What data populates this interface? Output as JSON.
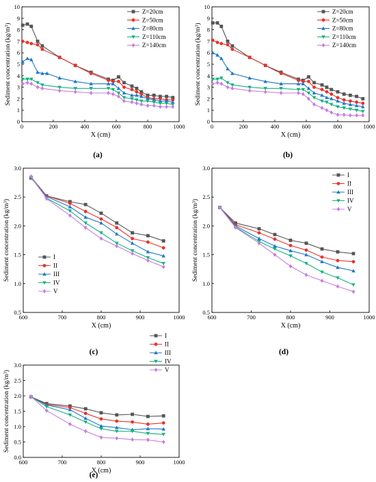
{
  "chart_data": [
    {
      "panel_label": "(a)",
      "type": "line",
      "xlabel": "X (cm)",
      "ylabel": "Sediment concentration (kg/m³)",
      "xlim": [
        0,
        1000
      ],
      "ylim": [
        0,
        10
      ],
      "xticks": [
        0,
        200,
        400,
        600,
        800,
        1000
      ],
      "yticks": [
        0,
        1,
        2,
        3,
        4,
        5,
        6,
        7,
        8,
        9,
        10
      ],
      "legend_position": "top-right",
      "series": [
        {
          "name": "Z=20cm",
          "color": "#555555",
          "marker": "square",
          "x": [
            5,
            35,
            60,
            100,
            130,
            240,
            340,
            440,
            550,
            580,
            615,
            650,
            700,
            730,
            760,
            800,
            840,
            880,
            920,
            960
          ],
          "y": [
            8.4,
            8.5,
            8.3,
            7.0,
            6.6,
            5.6,
            4.9,
            4.3,
            3.7,
            3.6,
            3.9,
            3.4,
            3.1,
            2.9,
            2.6,
            2.3,
            2.3,
            2.2,
            2.2,
            2.1
          ]
        },
        {
          "name": "Z=50cm",
          "color": "#e8322a",
          "marker": "circle",
          "x": [
            5,
            35,
            60,
            100,
            130,
            240,
            340,
            440,
            550,
            580,
            615,
            650,
            700,
            730,
            760,
            800,
            840,
            880,
            920,
            960
          ],
          "y": [
            7.0,
            6.9,
            6.8,
            6.7,
            6.3,
            5.6,
            4.9,
            4.2,
            3.6,
            3.5,
            3.5,
            3.0,
            2.8,
            2.6,
            2.4,
            2.1,
            2.0,
            2.0,
            1.9,
            1.9
          ]
        },
        {
          "name": "Z=80cm",
          "color": "#1f77c8",
          "marker": "triangle-up",
          "x": [
            5,
            35,
            60,
            100,
            130,
            160,
            240,
            340,
            440,
            550,
            580,
            615,
            650,
            700,
            730,
            760,
            800,
            840,
            880,
            920,
            960
          ],
          "y": [
            5.2,
            5.5,
            5.4,
            4.3,
            4.2,
            4.2,
            3.8,
            3.5,
            3.3,
            3.3,
            3.3,
            2.9,
            2.5,
            2.3,
            2.3,
            2.2,
            2.0,
            1.9,
            1.8,
            1.8,
            1.7
          ]
        },
        {
          "name": "Z=110cm",
          "color": "#14b37d",
          "marker": "triangle-down",
          "x": [
            5,
            35,
            60,
            100,
            130,
            240,
            340,
            440,
            550,
            580,
            615,
            650,
            700,
            730,
            760,
            800,
            840,
            880,
            920,
            960
          ],
          "y": [
            3.7,
            3.7,
            3.7,
            3.4,
            3.2,
            3.0,
            2.9,
            2.9,
            2.9,
            2.8,
            2.5,
            2.1,
            2.0,
            1.9,
            1.8,
            1.8,
            1.7,
            1.6,
            1.6,
            1.5
          ]
        },
        {
          "name": "Z=140cm",
          "color": "#c77ee0",
          "marker": "diamond",
          "x": [
            5,
            35,
            60,
            100,
            130,
            240,
            340,
            440,
            550,
            580,
            615,
            650,
            700,
            730,
            760,
            800,
            840,
            880,
            920,
            960
          ],
          "y": [
            3.3,
            3.4,
            3.3,
            3.0,
            2.9,
            2.7,
            2.6,
            2.5,
            2.5,
            2.4,
            2.2,
            1.8,
            1.7,
            1.6,
            1.5,
            1.4,
            1.4,
            1.3,
            1.3,
            1.3
          ]
        }
      ]
    },
    {
      "panel_label": "(b)",
      "type": "line",
      "xlabel": "X (cm)",
      "ylabel": "Sediment concentration (kg/m³)",
      "xlim": [
        0,
        1000
      ],
      "ylim": [
        0,
        10
      ],
      "xticks": [
        0,
        200,
        400,
        600,
        800,
        1000
      ],
      "yticks": [
        0,
        1,
        2,
        3,
        4,
        5,
        6,
        7,
        8,
        9,
        10
      ],
      "legend_position": "top-right",
      "series": [
        {
          "name": "Z=20cm",
          "color": "#555555",
          "marker": "square",
          "x": [
            5,
            35,
            60,
            100,
            130,
            240,
            340,
            440,
            550,
            580,
            615,
            650,
            700,
            730,
            760,
            800,
            840,
            880,
            920,
            960
          ],
          "y": [
            8.6,
            8.6,
            8.3,
            7.0,
            6.6,
            5.6,
            4.9,
            4.3,
            3.7,
            3.6,
            3.9,
            3.4,
            3.2,
            3.0,
            2.8,
            2.6,
            2.4,
            2.3,
            2.2,
            2.0
          ]
        },
        {
          "name": "Z=50cm",
          "color": "#e8322a",
          "marker": "circle",
          "x": [
            5,
            35,
            60,
            100,
            130,
            240,
            340,
            440,
            550,
            580,
            615,
            650,
            700,
            730,
            760,
            800,
            840,
            880,
            920,
            960
          ],
          "y": [
            7.1,
            6.9,
            6.8,
            6.7,
            6.3,
            5.6,
            4.9,
            4.2,
            3.6,
            3.5,
            3.5,
            3.0,
            2.8,
            2.6,
            2.4,
            2.1,
            1.9,
            1.8,
            1.7,
            1.6
          ]
        },
        {
          "name": "Z=80cm",
          "color": "#1f77c8",
          "marker": "triangle-up",
          "x": [
            5,
            35,
            60,
            100,
            130,
            240,
            340,
            440,
            550,
            580,
            615,
            650,
            700,
            730,
            760,
            800,
            840,
            880,
            920,
            960
          ],
          "y": [
            6.0,
            5.8,
            5.5,
            4.6,
            4.2,
            3.8,
            3.5,
            3.3,
            3.3,
            3.3,
            2.9,
            2.5,
            2.3,
            2.1,
            2.0,
            1.8,
            1.6,
            1.5,
            1.4,
            1.3
          ]
        },
        {
          "name": "Z=110cm",
          "color": "#14b37d",
          "marker": "triangle-down",
          "x": [
            5,
            35,
            60,
            100,
            130,
            240,
            340,
            440,
            550,
            580,
            615,
            650,
            700,
            730,
            760,
            800,
            840,
            880,
            920,
            960
          ],
          "y": [
            3.7,
            3.7,
            3.8,
            3.4,
            3.2,
            3.0,
            2.9,
            2.9,
            2.8,
            2.8,
            2.5,
            2.1,
            1.8,
            1.7,
            1.5,
            1.3,
            1.2,
            1.1,
            1.0,
            0.9
          ]
        },
        {
          "name": "Z=140cm",
          "color": "#c77ee0",
          "marker": "diamond",
          "x": [
            5,
            35,
            60,
            100,
            130,
            240,
            340,
            440,
            550,
            580,
            615,
            650,
            700,
            730,
            760,
            800,
            840,
            880,
            920,
            960
          ],
          "y": [
            3.3,
            3.4,
            3.3,
            3.0,
            2.9,
            2.7,
            2.6,
            2.5,
            2.5,
            2.4,
            2.0,
            1.5,
            1.2,
            1.0,
            0.8,
            0.6,
            0.6,
            0.55,
            0.55,
            0.55
          ]
        }
      ]
    },
    {
      "panel_label": "(c)",
      "type": "line",
      "xlabel": "X (cm)",
      "ylabel": "Sediment concentration (kg/m³)",
      "xlim": [
        600,
        1000
      ],
      "ylim": [
        0.5,
        3.0
      ],
      "xticks": [
        600,
        700,
        800,
        900,
        1000
      ],
      "yticks": [
        0.5,
        1.0,
        1.5,
        2.0,
        2.5,
        3.0
      ],
      "legend_position": "bottom-left",
      "series": [
        {
          "name": "I",
          "color": "#555555",
          "marker": "square",
          "x": [
            620,
            660,
            720,
            760,
            800,
            840,
            880,
            920,
            960
          ],
          "y": [
            2.83,
            2.52,
            2.42,
            2.37,
            2.22,
            2.05,
            1.88,
            1.83,
            1.74
          ]
        },
        {
          "name": "II",
          "color": "#e8322a",
          "marker": "circle",
          "x": [
            620,
            660,
            720,
            760,
            800,
            840,
            880,
            920,
            960
          ],
          "y": [
            2.85,
            2.52,
            2.39,
            2.25,
            2.12,
            1.97,
            1.78,
            1.72,
            1.62
          ]
        },
        {
          "name": "III",
          "color": "#1f77c8",
          "marker": "triangle-up",
          "x": [
            620,
            660,
            720,
            760,
            800,
            840,
            880,
            920,
            960
          ],
          "y": [
            2.84,
            2.51,
            2.33,
            2.15,
            2.05,
            1.86,
            1.7,
            1.55,
            1.48
          ]
        },
        {
          "name": "IV",
          "color": "#14b37d",
          "marker": "triangle-down",
          "x": [
            620,
            660,
            720,
            760,
            800,
            840,
            880,
            920,
            960
          ],
          "y": [
            2.84,
            2.48,
            2.26,
            2.05,
            1.88,
            1.7,
            1.57,
            1.45,
            1.35
          ]
        },
        {
          "name": "V",
          "color": "#c77ee0",
          "marker": "diamond",
          "x": [
            620,
            660,
            720,
            760,
            800,
            840,
            880,
            920,
            960
          ],
          "y": [
            2.86,
            2.47,
            2.18,
            1.97,
            1.78,
            1.65,
            1.52,
            1.4,
            1.29
          ]
        }
      ]
    },
    {
      "panel_label": "(d)",
      "type": "line",
      "xlabel": "X (cm)",
      "ylabel": "Sediment concentration (kg/m³)",
      "xlim": [
        600,
        1000
      ],
      "ylim": [
        0.5,
        3.0
      ],
      "xticks": [
        600,
        700,
        800,
        900,
        1000
      ],
      "yticks": [
        0.5,
        1.0,
        1.5,
        2.0,
        2.5,
        3.0
      ],
      "legend_position": "top-right",
      "series": [
        {
          "name": "I",
          "color": "#555555",
          "marker": "square",
          "x": [
            620,
            660,
            720,
            760,
            800,
            840,
            880,
            920,
            960
          ],
          "y": [
            2.32,
            2.05,
            1.95,
            1.85,
            1.75,
            1.7,
            1.6,
            1.55,
            1.52
          ]
        },
        {
          "name": "II",
          "color": "#e8322a",
          "marker": "circle",
          "x": [
            620,
            660,
            720,
            760,
            800,
            840,
            880,
            920,
            960
          ],
          "y": [
            2.32,
            2.02,
            1.88,
            1.77,
            1.66,
            1.58,
            1.46,
            1.4,
            1.38
          ]
        },
        {
          "name": "III",
          "color": "#1f77c8",
          "marker": "triangle-up",
          "x": [
            620,
            660,
            720,
            760,
            800,
            840,
            880,
            920,
            960
          ],
          "y": [
            2.32,
            2.0,
            1.78,
            1.65,
            1.57,
            1.5,
            1.38,
            1.28,
            1.22
          ]
        },
        {
          "name": "IV",
          "color": "#14b37d",
          "marker": "triangle-down",
          "x": [
            620,
            660,
            720,
            760,
            800,
            840,
            880,
            920,
            960
          ],
          "y": [
            2.32,
            1.98,
            1.73,
            1.6,
            1.48,
            1.35,
            1.2,
            1.1,
            0.98
          ]
        },
        {
          "name": "V",
          "color": "#c77ee0",
          "marker": "diamond",
          "x": [
            620,
            660,
            720,
            760,
            800,
            840,
            880,
            920,
            960
          ],
          "y": [
            2.32,
            1.97,
            1.7,
            1.5,
            1.3,
            1.15,
            1.05,
            0.95,
            0.86
          ]
        }
      ]
    },
    {
      "panel_label": "(e)",
      "type": "line",
      "xlabel": "X (cm)",
      "ylabel": "Sediment concentration (kg/m³)",
      "xlim": [
        600,
        1000
      ],
      "ylim": [
        0.0,
        3.0
      ],
      "xticks": [
        600,
        700,
        800,
        900,
        1000
      ],
      "yticks": [
        0.0,
        0.5,
        1.0,
        1.5,
        2.0,
        2.5,
        3.0
      ],
      "legend_position": "top-right",
      "series": [
        {
          "name": "I",
          "color": "#555555",
          "marker": "square",
          "x": [
            620,
            660,
            720,
            760,
            800,
            840,
            880,
            920,
            960
          ],
          "y": [
            1.97,
            1.75,
            1.67,
            1.58,
            1.45,
            1.38,
            1.4,
            1.33,
            1.35
          ]
        },
        {
          "name": "II",
          "color": "#e8322a",
          "marker": "circle",
          "x": [
            620,
            660,
            720,
            760,
            800,
            840,
            880,
            920,
            960
          ],
          "y": [
            1.97,
            1.72,
            1.62,
            1.43,
            1.25,
            1.18,
            1.15,
            1.08,
            1.12
          ]
        },
        {
          "name": "III",
          "color": "#1f77c8",
          "marker": "triangle-up",
          "x": [
            620,
            660,
            720,
            760,
            800,
            840,
            880,
            920,
            960
          ],
          "y": [
            1.97,
            1.7,
            1.55,
            1.27,
            1.02,
            0.97,
            0.9,
            0.93,
            0.92
          ]
        },
        {
          "name": "IV",
          "color": "#14b37d",
          "marker": "triangle-down",
          "x": [
            620,
            660,
            720,
            760,
            800,
            840,
            880,
            920,
            960
          ],
          "y": [
            1.97,
            1.65,
            1.38,
            1.15,
            0.93,
            0.85,
            0.85,
            0.78,
            0.75
          ]
        },
        {
          "name": "V",
          "color": "#c77ee0",
          "marker": "diamond",
          "x": [
            620,
            660,
            720,
            760,
            800,
            840,
            880,
            920,
            960
          ],
          "y": [
            1.98,
            1.52,
            1.08,
            0.85,
            0.65,
            0.62,
            0.58,
            0.57,
            0.5
          ]
        }
      ]
    }
  ]
}
